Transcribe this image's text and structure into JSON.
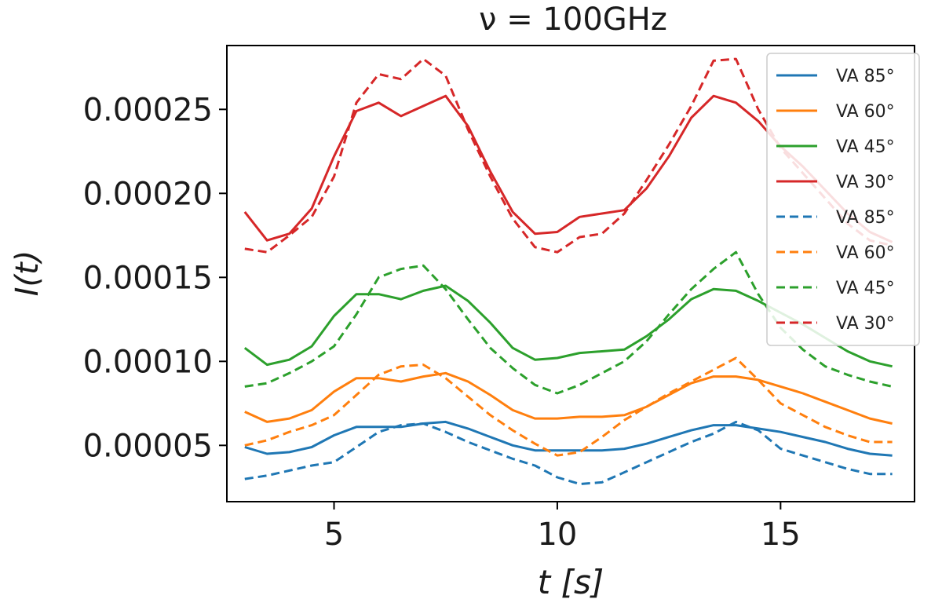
{
  "chart_data": {
    "type": "line",
    "title": "ν = 100GHz",
    "xlabel": "t [s]",
    "ylabel": "I(t)",
    "xlim": [
      2.6,
      18.0
    ],
    "ylim": [
      1.65e-05,
      0.000288
    ],
    "xticks": [
      5,
      10,
      15
    ],
    "xtick_labels": [
      "5",
      "10",
      "15"
    ],
    "yticks": [
      5e-05,
      0.0001,
      0.00015,
      0.0002,
      0.00025
    ],
    "ytick_labels": [
      "0.00005",
      "0.00010",
      "0.00015",
      "0.00020",
      "0.00025"
    ],
    "grid": false,
    "legend_position": "top-right",
    "x": [
      3.0,
      3.5,
      4.0,
      4.5,
      5.0,
      5.5,
      6.0,
      6.5,
      7.0,
      7.5,
      8.0,
      8.5,
      9.0,
      9.5,
      10.0,
      10.5,
      11.0,
      11.5,
      12.0,
      12.5,
      13.0,
      13.5,
      14.0,
      14.5,
      15.0,
      15.5,
      16.0,
      16.5,
      17.0,
      17.5
    ],
    "series": [
      {
        "name": "VA 85°",
        "color": "#1f77b4",
        "style": "solid",
        "values": [
          4.9e-05,
          4.5e-05,
          4.6e-05,
          4.9e-05,
          5.6e-05,
          6.1e-05,
          6.1e-05,
          6.1e-05,
          6.3e-05,
          6.4e-05,
          6e-05,
          5.5e-05,
          5e-05,
          4.7e-05,
          4.7e-05,
          4.7e-05,
          4.7e-05,
          4.8e-05,
          5.1e-05,
          5.5e-05,
          5.9e-05,
          6.2e-05,
          6.2e-05,
          6e-05,
          5.8e-05,
          5.5e-05,
          5.2e-05,
          4.8e-05,
          4.5e-05,
          4.4e-05
        ]
      },
      {
        "name": "VA 60°",
        "color": "#ff7f0e",
        "style": "solid",
        "values": [
          7e-05,
          6.4e-05,
          6.6e-05,
          7.1e-05,
          8.2e-05,
          9e-05,
          9e-05,
          8.8e-05,
          9.1e-05,
          9.3e-05,
          8.8e-05,
          8e-05,
          7.1e-05,
          6.6e-05,
          6.6e-05,
          6.7e-05,
          6.7e-05,
          6.8e-05,
          7.3e-05,
          8e-05,
          8.7e-05,
          9.1e-05,
          9.1e-05,
          8.9e-05,
          8.5e-05,
          8.1e-05,
          7.6e-05,
          7.1e-05,
          6.6e-05,
          6.3e-05
        ]
      },
      {
        "name": "VA 45°",
        "color": "#2ca02c",
        "style": "solid",
        "values": [
          0.000108,
          9.8e-05,
          0.000101,
          0.000109,
          0.000127,
          0.00014,
          0.00014,
          0.000137,
          0.000142,
          0.000145,
          0.000136,
          0.000123,
          0.000108,
          0.000101,
          0.000102,
          0.000105,
          0.000106,
          0.000107,
          0.000115,
          0.000125,
          0.000137,
          0.000143,
          0.000142,
          0.000136,
          0.000129,
          0.000122,
          0.000114,
          0.000106,
          0.0001,
          9.7e-05
        ]
      },
      {
        "name": "VA 30°",
        "color": "#d62728",
        "style": "solid",
        "values": [
          0.000189,
          0.000172,
          0.000176,
          0.000191,
          0.000222,
          0.000249,
          0.000254,
          0.000246,
          0.000252,
          0.000258,
          0.00024,
          0.000213,
          0.000189,
          0.000176,
          0.000177,
          0.000186,
          0.000188,
          0.00019,
          0.000203,
          0.000222,
          0.000245,
          0.000258,
          0.000254,
          0.000243,
          0.000228,
          0.000216,
          0.000202,
          0.000188,
          0.000177,
          0.000171
        ]
      },
      {
        "name": "VA 85°",
        "color": "#1f77b4",
        "style": "dashed",
        "values": [
          3e-05,
          3.2e-05,
          3.5e-05,
          3.8e-05,
          4e-05,
          4.9e-05,
          5.8e-05,
          6.2e-05,
          6.3e-05,
          5.8e-05,
          5.2e-05,
          4.7e-05,
          4.2e-05,
          3.8e-05,
          3.1e-05,
          2.7e-05,
          2.8e-05,
          3.4e-05,
          4e-05,
          4.6e-05,
          5.2e-05,
          5.7e-05,
          6.4e-05,
          5.9e-05,
          4.8e-05,
          4.4e-05,
          4e-05,
          3.6e-05,
          3.3e-05,
          3.3e-05
        ]
      },
      {
        "name": "VA 60°",
        "color": "#ff7f0e",
        "style": "dashed",
        "values": [
          5e-05,
          5.3e-05,
          5.8e-05,
          6.2e-05,
          6.8e-05,
          8e-05,
          9.2e-05,
          9.7e-05,
          9.8e-05,
          9e-05,
          7.9e-05,
          6.8e-05,
          5.9e-05,
          5.1e-05,
          4.4e-05,
          4.6e-05,
          5.5e-05,
          6.5e-05,
          7.3e-05,
          8.1e-05,
          8.8e-05,
          9.5e-05,
          0.000102,
          8.9e-05,
          7.5e-05,
          6.8e-05,
          6.1e-05,
          5.6e-05,
          5.2e-05,
          5.2e-05
        ]
      },
      {
        "name": "VA 45°",
        "color": "#2ca02c",
        "style": "dashed",
        "values": [
          8.5e-05,
          8.7e-05,
          9.3e-05,
          0.0001,
          0.000109,
          0.000128,
          0.00015,
          0.000155,
          0.000157,
          0.000143,
          0.000125,
          0.000108,
          9.6e-05,
          8.6e-05,
          8.1e-05,
          8.6e-05,
          9.3e-05,
          0.0001,
          0.000112,
          0.000128,
          0.000143,
          0.000155,
          0.000165,
          0.00014,
          0.00012,
          0.000107,
          9.7e-05,
          9.2e-05,
          8.8e-05,
          8.5e-05
        ]
      },
      {
        "name": "VA 30°",
        "color": "#d62728",
        "style": "dashed",
        "values": [
          0.000167,
          0.000165,
          0.000175,
          0.000186,
          0.00021,
          0.000254,
          0.000271,
          0.000268,
          0.00028,
          0.00027,
          0.000238,
          0.00021,
          0.000185,
          0.000168,
          0.000165,
          0.000174,
          0.000176,
          0.000188,
          0.000208,
          0.000229,
          0.000252,
          0.000279,
          0.00028,
          0.00025,
          0.000227,
          0.000212,
          0.000197,
          0.000182,
          0.000172,
          0.000169
        ]
      }
    ]
  }
}
